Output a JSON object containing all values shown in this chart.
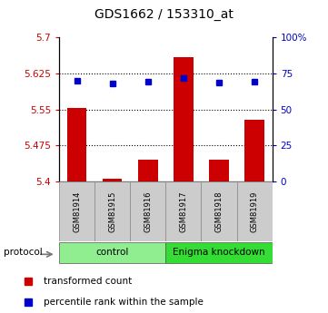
{
  "title": "GDS1662 / 153310_at",
  "samples": [
    "GSM81914",
    "GSM81915",
    "GSM81916",
    "GSM81917",
    "GSM81918",
    "GSM81919"
  ],
  "bar_values": [
    5.554,
    5.405,
    5.445,
    5.66,
    5.445,
    5.528
  ],
  "bar_base": 5.4,
  "dot_values": [
    5.61,
    5.605,
    5.608,
    5.615,
    5.607,
    5.609
  ],
  "ylim_left": [
    5.4,
    5.7
  ],
  "ylim_right": [
    0,
    100
  ],
  "yticks_left": [
    5.4,
    5.475,
    5.55,
    5.625,
    5.7
  ],
  "ytick_labels_left": [
    "5.4",
    "5.475",
    "5.55",
    "5.625",
    "5.7"
  ],
  "yticks_right": [
    0,
    25,
    50,
    75,
    100
  ],
  "ytick_labels_right": [
    "0",
    "25",
    "50",
    "75",
    "100%"
  ],
  "hlines": [
    5.475,
    5.55,
    5.625
  ],
  "groups": [
    {
      "label": "control",
      "start": 0,
      "end": 3,
      "color": "#90ee90"
    },
    {
      "label": "Enigma knockdown",
      "start": 3,
      "end": 6,
      "color": "#33dd33"
    }
  ],
  "protocol_label": "protocol",
  "bar_color": "#cc0000",
  "dot_color": "#0000cc",
  "bar_width": 0.55,
  "left_tick_color": "#cc0000",
  "right_tick_color": "#0000cc",
  "legend_items": [
    {
      "label": "transformed count",
      "color": "#cc0000"
    },
    {
      "label": "percentile rank within the sample",
      "color": "#0000cc"
    }
  ],
  "sample_box_color": "#cccccc",
  "figsize": [
    3.61,
    3.45
  ],
  "dpi": 100
}
